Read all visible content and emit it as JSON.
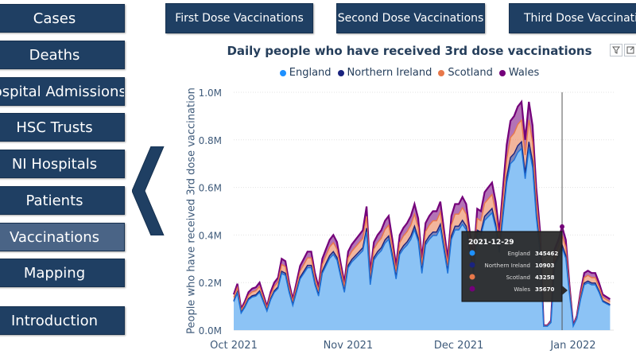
{
  "nav": {
    "items": [
      {
        "label": "Cases",
        "active": false
      },
      {
        "label": "Deaths",
        "active": false
      },
      {
        "label": "Hospital Admissions",
        "active": false
      },
      {
        "label": "HSC Trusts",
        "active": false
      },
      {
        "label": "NI Hospitals",
        "active": false
      },
      {
        "label": "Patients",
        "active": false
      },
      {
        "label": "Vaccinations",
        "active": true
      },
      {
        "label": "Mapping",
        "active": false
      }
    ],
    "intro_label": "Introduction"
  },
  "tabs": {
    "first": "First Dose Vaccinations",
    "second": "Second Dose Vaccinations",
    "third": "Third Dose Vaccinations"
  },
  "icons": {
    "filter": "filter-icon",
    "focus": "focus-mode-icon",
    "back": "back-arrow-icon"
  },
  "colors": {
    "nav_bg": "#1f3f63",
    "nav_active": "#4a6486",
    "England": "#1e90ff",
    "Northern Ireland": "#1a237e",
    "Scotland": "#e8784a",
    "Wales": "#74007a"
  },
  "chart_data": {
    "type": "area",
    "title": "Daily people who have received 3rd dose vaccinations",
    "ylabel": "People who have received 3rd dose vaccination",
    "xlabel": "",
    "stacked": true,
    "ylim": [
      0,
      1000000
    ],
    "yticks": [
      "0.0M",
      "0.2M",
      "0.4M",
      "0.6M",
      "0.8M",
      "1.0M"
    ],
    "xticks": [
      "Oct 2021",
      "Nov 2021",
      "Dec 2021",
      "Jan 2022"
    ],
    "x_range": [
      "2021-10-01",
      "2022-01-12"
    ],
    "legend": [
      "England",
      "Northern Ireland",
      "Scotland",
      "Wales"
    ],
    "totals_approx": [
      [
        "2021-10-01",
        150000
      ],
      [
        "2021-10-02",
        195000
      ],
      [
        "2021-10-03",
        90000
      ],
      [
        "2021-10-04",
        120000
      ],
      [
        "2021-10-05",
        160000
      ],
      [
        "2021-10-06",
        175000
      ],
      [
        "2021-10-07",
        180000
      ],
      [
        "2021-10-08",
        200000
      ],
      [
        "2021-10-09",
        150000
      ],
      [
        "2021-10-10",
        100000
      ],
      [
        "2021-10-11",
        160000
      ],
      [
        "2021-10-12",
        200000
      ],
      [
        "2021-10-13",
        220000
      ],
      [
        "2021-10-14",
        300000
      ],
      [
        "2021-10-15",
        290000
      ],
      [
        "2021-10-16",
        200000
      ],
      [
        "2021-10-17",
        130000
      ],
      [
        "2021-10-18",
        200000
      ],
      [
        "2021-10-19",
        270000
      ],
      [
        "2021-10-20",
        300000
      ],
      [
        "2021-10-21",
        330000
      ],
      [
        "2021-10-22",
        330000
      ],
      [
        "2021-10-23",
        240000
      ],
      [
        "2021-10-24",
        180000
      ],
      [
        "2021-10-25",
        300000
      ],
      [
        "2021-10-26",
        340000
      ],
      [
        "2021-10-27",
        380000
      ],
      [
        "2021-10-28",
        400000
      ],
      [
        "2021-10-29",
        370000
      ],
      [
        "2021-10-30",
        280000
      ],
      [
        "2021-10-31",
        200000
      ],
      [
        "2021-11-01",
        330000
      ],
      [
        "2021-11-02",
        360000
      ],
      [
        "2021-11-03",
        380000
      ],
      [
        "2021-11-04",
        400000
      ],
      [
        "2021-11-05",
        420000
      ],
      [
        "2021-11-06",
        520000
      ],
      [
        "2021-11-07",
        240000
      ],
      [
        "2021-11-08",
        370000
      ],
      [
        "2021-11-09",
        400000
      ],
      [
        "2021-11-10",
        420000
      ],
      [
        "2021-11-11",
        460000
      ],
      [
        "2021-11-12",
        480000
      ],
      [
        "2021-11-13",
        380000
      ],
      [
        "2021-11-14",
        270000
      ],
      [
        "2021-11-15",
        400000
      ],
      [
        "2021-11-16",
        430000
      ],
      [
        "2021-11-17",
        450000
      ],
      [
        "2021-11-18",
        480000
      ],
      [
        "2021-11-19",
        530000
      ],
      [
        "2021-11-20",
        470000
      ],
      [
        "2021-11-21",
        300000
      ],
      [
        "2021-11-22",
        450000
      ],
      [
        "2021-11-23",
        480000
      ],
      [
        "2021-11-24",
        500000
      ],
      [
        "2021-11-25",
        500000
      ],
      [
        "2021-11-26",
        540000
      ],
      [
        "2021-11-27",
        420000
      ],
      [
        "2021-11-28",
        300000
      ],
      [
        "2021-11-29",
        480000
      ],
      [
        "2021-11-30",
        530000
      ],
      [
        "2021-12-01",
        530000
      ],
      [
        "2021-12-02",
        560000
      ],
      [
        "2021-12-03",
        530000
      ],
      [
        "2021-12-04",
        410000
      ],
      [
        "2021-12-05",
        300000
      ],
      [
        "2021-12-06",
        510000
      ],
      [
        "2021-12-07",
        500000
      ],
      [
        "2021-12-08",
        580000
      ],
      [
        "2021-12-09",
        600000
      ],
      [
        "2021-12-10",
        620000
      ],
      [
        "2021-12-11",
        540000
      ],
      [
        "2021-12-12",
        410000
      ],
      [
        "2021-12-13",
        600000
      ],
      [
        "2021-12-14",
        780000
      ],
      [
        "2021-12-15",
        880000
      ],
      [
        "2021-12-16",
        900000
      ],
      [
        "2021-12-17",
        940000
      ],
      [
        "2021-12-18",
        960000
      ],
      [
        "2021-12-19",
        800000
      ],
      [
        "2021-12-20",
        960000
      ],
      [
        "2021-12-21",
        860000
      ],
      [
        "2021-12-22",
        600000
      ],
      [
        "2021-12-23",
        420000
      ],
      [
        "2021-12-24",
        20000
      ],
      [
        "2021-12-25",
        20000
      ],
      [
        "2021-12-26",
        40000
      ],
      [
        "2021-12-27",
        340000
      ],
      [
        "2021-12-28",
        380000
      ],
      [
        "2021-12-29",
        435000
      ],
      [
        "2021-12-30",
        380000
      ],
      [
        "2021-12-31",
        190000
      ],
      [
        "2022-01-01",
        20000
      ],
      [
        "2022-01-02",
        60000
      ],
      [
        "2022-01-03",
        160000
      ],
      [
        "2022-01-04",
        240000
      ],
      [
        "2022-01-05",
        250000
      ],
      [
        "2022-01-06",
        240000
      ],
      [
        "2022-01-07",
        240000
      ],
      [
        "2022-01-08",
        200000
      ],
      [
        "2022-01-09",
        150000
      ],
      [
        "2022-01-10",
        140000
      ],
      [
        "2022-01-11",
        130000
      ]
    ],
    "tooltip": {
      "date": "2021-12-29",
      "rows": [
        {
          "name": "England",
          "value": "345462"
        },
        {
          "name": "Northern Ireland",
          "value": "10903"
        },
        {
          "name": "Scotland",
          "value": "43258"
        },
        {
          "name": "Wales",
          "value": "35670"
        }
      ]
    }
  }
}
